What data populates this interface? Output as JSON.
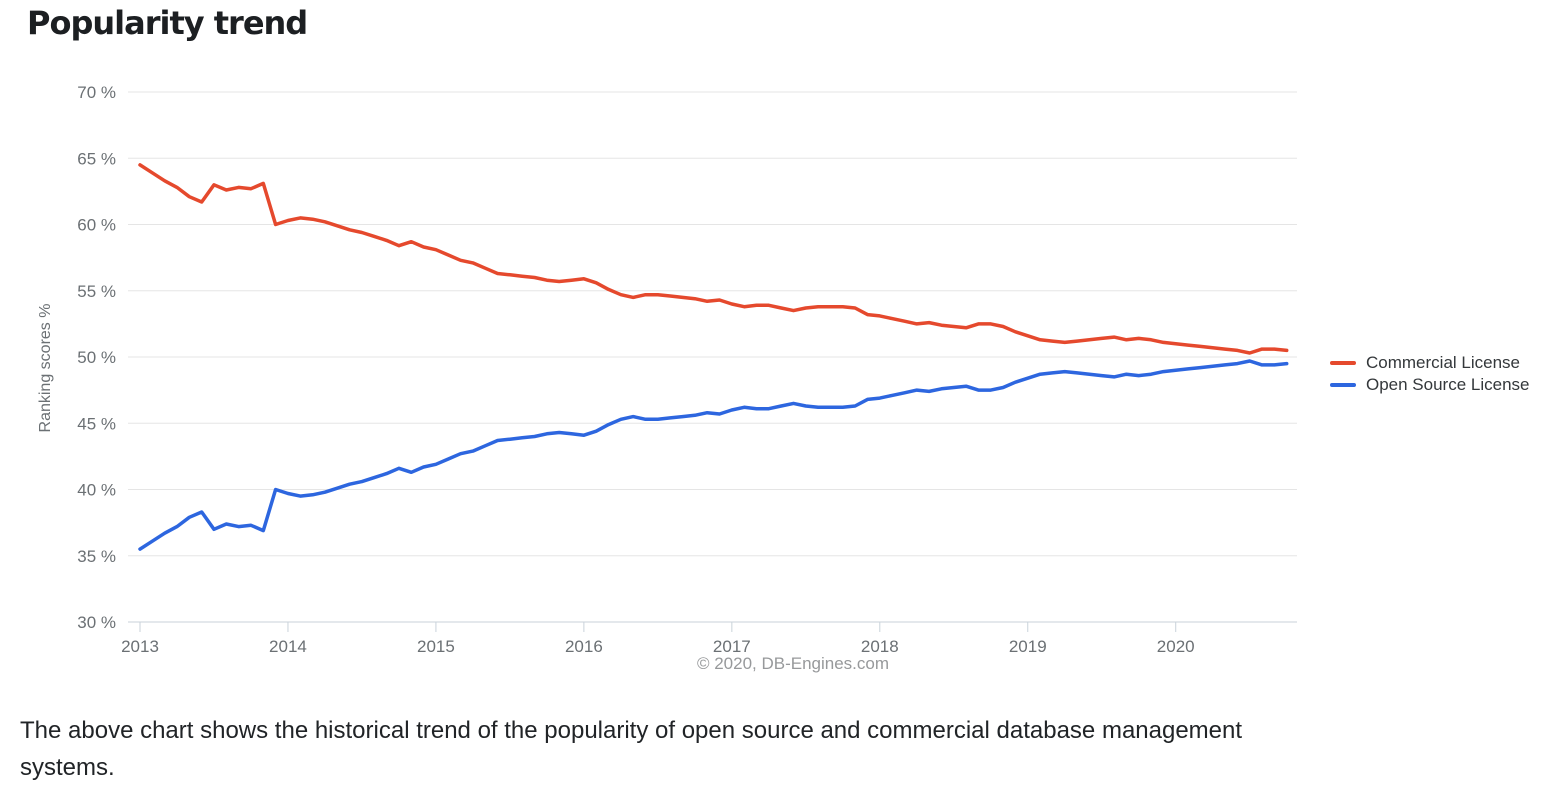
{
  "page": {
    "title": "Popularity trend",
    "copyright": "© 2020, DB-Engines.com",
    "description": "The above chart shows the historical trend of the popularity of open source and commercial database management systems."
  },
  "chart_data": {
    "type": "line",
    "title": "Popularity trend",
    "xlabel": "",
    "ylabel": "Ranking scores %",
    "ylim": [
      30,
      70
    ],
    "yticks": [
      70,
      65,
      60,
      55,
      50,
      45,
      40,
      35,
      30
    ],
    "ytick_suffix": " %",
    "xticks": [
      "2013",
      "2014",
      "2015",
      "2016",
      "2017",
      "2018",
      "2019",
      "2020"
    ],
    "x_unit": "month",
    "x_start": "2013-01",
    "x_end": "2020-10",
    "grid": true,
    "legend_position": "right",
    "colors": {
      "grid": "#e5e5e5",
      "axis": "#c9d2da",
      "tick_text": "#6b7074"
    },
    "series": [
      {
        "id": "commercial-license",
        "name": "Commercial License",
        "color": "#e5492d",
        "values": [
          64.5,
          63.9,
          63.3,
          62.8,
          62.1,
          61.7,
          63.0,
          62.6,
          62.8,
          62.7,
          63.1,
          60.0,
          60.3,
          60.5,
          60.4,
          60.2,
          59.9,
          59.6,
          59.4,
          59.1,
          58.8,
          58.4,
          58.7,
          58.3,
          58.1,
          57.7,
          57.3,
          57.1,
          56.7,
          56.3,
          56.2,
          56.1,
          56.0,
          55.8,
          55.7,
          55.8,
          55.9,
          55.6,
          55.1,
          54.7,
          54.5,
          54.7,
          54.7,
          54.6,
          54.5,
          54.4,
          54.2,
          54.3,
          54.0,
          53.8,
          53.9,
          53.9,
          53.7,
          53.5,
          53.7,
          53.8,
          53.8,
          53.8,
          53.7,
          53.2,
          53.1,
          52.9,
          52.7,
          52.5,
          52.6,
          52.4,
          52.3,
          52.2,
          52.5,
          52.5,
          52.3,
          51.9,
          51.6,
          51.3,
          51.2,
          51.1,
          51.2,
          51.3,
          51.4,
          51.5,
          51.3,
          51.4,
          51.3,
          51.1,
          51.0,
          50.9,
          50.8,
          50.7,
          50.6,
          50.5,
          50.3,
          50.6,
          50.6,
          50.5
        ]
      },
      {
        "id": "open-source-license",
        "name": "Open Source License",
        "color": "#2d66df",
        "values": [
          35.5,
          36.1,
          36.7,
          37.2,
          37.9,
          38.3,
          37.0,
          37.4,
          37.2,
          37.3,
          36.9,
          40.0,
          39.7,
          39.5,
          39.6,
          39.8,
          40.1,
          40.4,
          40.6,
          40.9,
          41.2,
          41.6,
          41.3,
          41.7,
          41.9,
          42.3,
          42.7,
          42.9,
          43.3,
          43.7,
          43.8,
          43.9,
          44.0,
          44.2,
          44.3,
          44.2,
          44.1,
          44.4,
          44.9,
          45.3,
          45.5,
          45.3,
          45.3,
          45.4,
          45.5,
          45.6,
          45.8,
          45.7,
          46.0,
          46.2,
          46.1,
          46.1,
          46.3,
          46.5,
          46.3,
          46.2,
          46.2,
          46.2,
          46.3,
          46.8,
          46.9,
          47.1,
          47.3,
          47.5,
          47.4,
          47.6,
          47.7,
          47.8,
          47.5,
          47.5,
          47.7,
          48.1,
          48.4,
          48.7,
          48.8,
          48.9,
          48.8,
          48.7,
          48.6,
          48.5,
          48.7,
          48.6,
          48.7,
          48.9,
          49.0,
          49.1,
          49.2,
          49.3,
          49.4,
          49.5,
          49.7,
          49.4,
          49.4,
          49.5
        ]
      }
    ]
  }
}
